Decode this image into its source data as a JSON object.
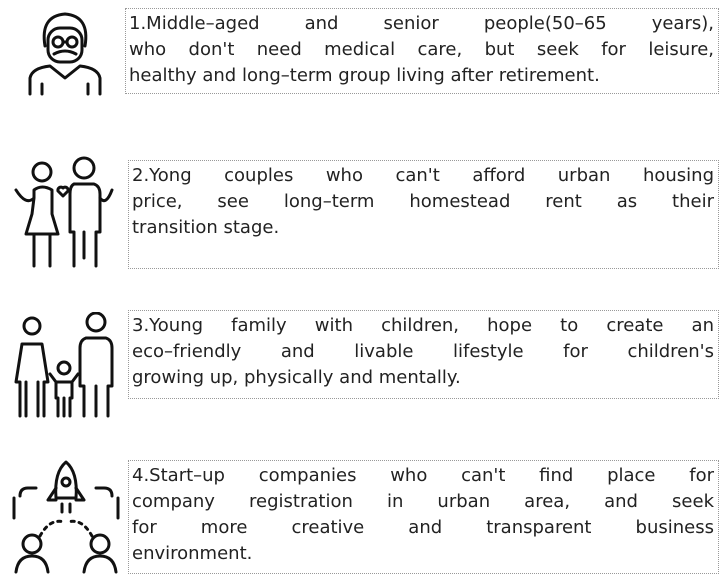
{
  "items": [
    {
      "lines": [
        "1.Middle–aged and senior people(50–65 years),",
        "who don't need medical care, but seek for leisure,",
        "healthy and long–term group living after retirement."
      ]
    },
    {
      "lines": [
        "2.Yong couples who can't afford urban housing",
        "price, see long–term homestead rent as their",
        "transition stage."
      ]
    },
    {
      "lines": [
        "3.Young family with children, hope to create an",
        "eco–friendly and livable lifestyle for children's",
        "growing up, physically and mentally."
      ]
    },
    {
      "lines": [
        "4.Start–up companies who can't find place for",
        "company registration in urban area, and seek",
        "for more creative and transparent business",
        "environment."
      ]
    }
  ]
}
